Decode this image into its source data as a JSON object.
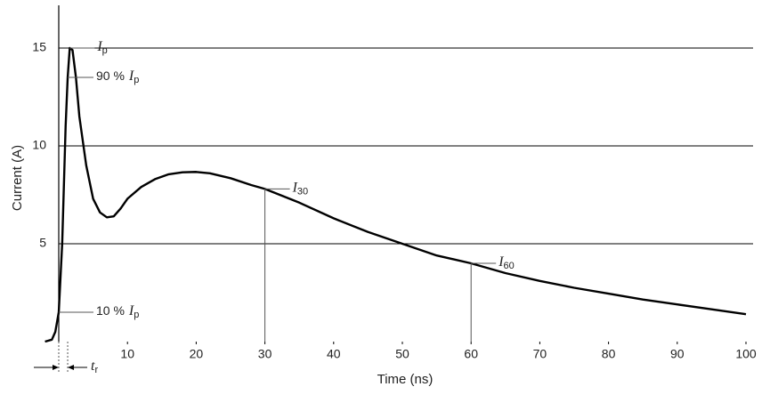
{
  "chart_data": {
    "type": "line",
    "x_label": "Time (ns)",
    "y_label": "Current (A)",
    "xlim": [
      0,
      100
    ],
    "ylim": [
      0,
      17
    ],
    "xticks": [
      10,
      20,
      30,
      40,
      50,
      60,
      70,
      80,
      90,
      100
    ],
    "yticks": [
      5,
      10,
      15
    ],
    "grid": true,
    "series": [
      {
        "color": "#000000",
        "x": [
          -2,
          -1,
          -0.5,
          0,
          0.5,
          1,
          1.3,
          1.6,
          2,
          2.5,
          3,
          4,
          5,
          6,
          7,
          8,
          9,
          10,
          12,
          14,
          16,
          18,
          20,
          22,
          25,
          28,
          30,
          35,
          40,
          45,
          50,
          55,
          60,
          65,
          70,
          75,
          80,
          85,
          90,
          95,
          100
        ],
        "values": [
          0,
          0.1,
          0.5,
          1.5,
          5,
          11,
          13.5,
          15,
          14.9,
          13.5,
          11.5,
          9,
          7.3,
          6.6,
          6.35,
          6.4,
          6.8,
          7.3,
          7.9,
          8.3,
          8.55,
          8.65,
          8.67,
          8.6,
          8.35,
          8.0,
          7.8,
          7.1,
          6.3,
          5.6,
          5.0,
          4.4,
          4.0,
          3.5,
          3.1,
          2.75,
          2.45,
          2.15,
          1.9,
          1.65,
          1.4
        ]
      }
    ],
    "annotations": [
      {
        "symbol": "I",
        "subscript": "p",
        "x": 1.6,
        "y": 15
      },
      {
        "prefix": "90 %",
        "symbol": "I",
        "subscript": "p",
        "x": 1.3,
        "y": 13.5
      },
      {
        "prefix": "10 %",
        "symbol": "I",
        "subscript": "p",
        "x": 0,
        "y": 1.5
      },
      {
        "symbol": "I",
        "subscript": "30",
        "x": 30,
        "y": 7.8
      },
      {
        "symbol": "I",
        "subscript": "60",
        "x": 60,
        "y": 4.0
      }
    ],
    "rise_time": {
      "symbol": "t",
      "subscript": "r",
      "start": 0,
      "end": 1.3
    }
  }
}
